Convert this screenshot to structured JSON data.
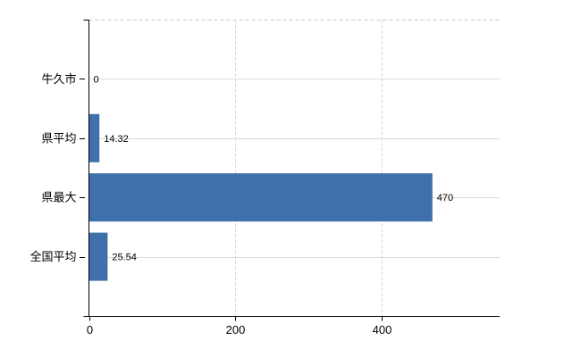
{
  "chart_data": {
    "type": "bar",
    "orientation": "horizontal",
    "categories": [
      "牛久市",
      "県平均",
      "県最大",
      "全国平均"
    ],
    "values": [
      0,
      14.32,
      470,
      25.54
    ],
    "value_labels": [
      "0",
      "14.32",
      "470",
      "25.54"
    ],
    "x_ticks": [
      0,
      200,
      400
    ],
    "x_tick_labels": [
      "0",
      "200",
      "400"
    ],
    "xlim": [
      0,
      562
    ],
    "grid": true,
    "legend": false,
    "bar_color": "#3f70ab",
    "colors": {
      "horizontal_grid": "#d9ded5",
      "vertical_grid": "#dbdbdb",
      "plot_top_border": "#cbcbcb",
      "axis": "#000000",
      "text": "#000000"
    }
  }
}
